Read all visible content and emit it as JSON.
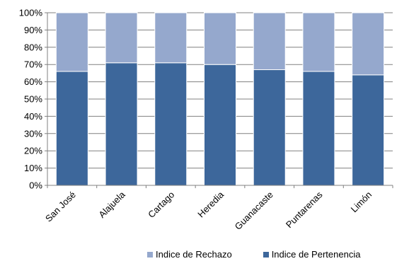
{
  "colors": {
    "pertenencia": "#3d679b",
    "rechazo": "#95a8cd",
    "grid": "#808080",
    "axis": "#808080",
    "bar_border": "#ffffff"
  },
  "chart_data": {
    "type": "bar",
    "stacked": true,
    "categories": [
      "San José",
      "Alajuela",
      "Cartago",
      "Heredia",
      "Guanacaste",
      "Puntarenas",
      "Limón"
    ],
    "series": [
      {
        "name": "Indice de Pertenencia",
        "color": "#3d679b",
        "values": [
          66,
          71,
          71,
          70,
          67,
          66,
          64
        ]
      },
      {
        "name": "Indice de Rechazo",
        "color": "#95a8cd",
        "values": [
          34,
          29,
          29,
          30,
          33,
          34,
          36
        ]
      }
    ],
    "yticks": [
      "0%",
      "10%",
      "20%",
      "30%",
      "40%",
      "50%",
      "60%",
      "70%",
      "80%",
      "90%",
      "100%"
    ],
    "ylim": [
      0,
      100
    ],
    "grid": true,
    "legend": {
      "position": "bottom",
      "items": [
        {
          "label": "Indice de Rechazo",
          "color": "#95a8cd"
        },
        {
          "label": "Indice de Pertenencia",
          "color": "#3d679b"
        }
      ]
    }
  }
}
